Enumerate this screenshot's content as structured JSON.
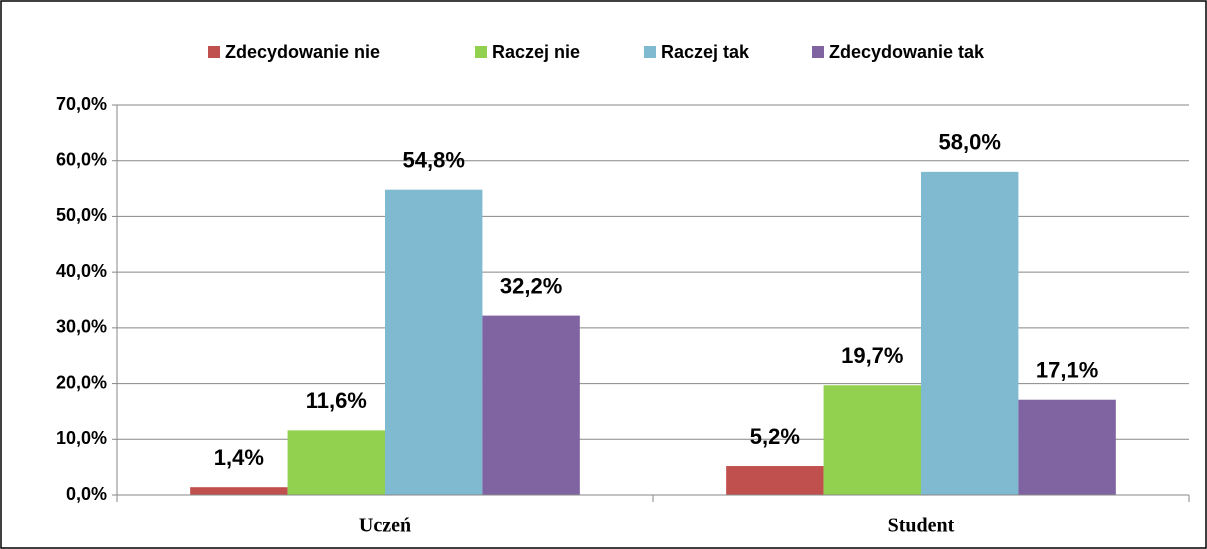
{
  "chart_data": {
    "type": "bar",
    "categories": [
      "Uczeń",
      "Student"
    ],
    "series": [
      {
        "name": "Zdecydowanie nie",
        "color": "#c0504d",
        "values": [
          1.4,
          5.2
        ],
        "value_labels": [
          "1,4%",
          "5,2%"
        ]
      },
      {
        "name": "Raczej nie",
        "color": "#92d050",
        "values": [
          11.6,
          19.7
        ],
        "value_labels": [
          "11,6%",
          "19,7%"
        ]
      },
      {
        "name": "Raczej tak",
        "color": "#7fbad0",
        "values": [
          54.8,
          58.0
        ],
        "value_labels": [
          "54,8%",
          "58,0%"
        ]
      },
      {
        "name": "Zdecydowanie tak",
        "color": "#8064a2",
        "values": [
          32.2,
          17.1
        ],
        "value_labels": [
          "32,2%",
          "17,1%"
        ]
      }
    ],
    "ylim": [
      0,
      70
    ],
    "yticks": [
      {
        "value": 0,
        "label": "0,0%"
      },
      {
        "value": 10,
        "label": "10,0%"
      },
      {
        "value": 20,
        "label": "20,0%"
      },
      {
        "value": 30,
        "label": "30,0%"
      },
      {
        "value": 40,
        "label": "40,0%"
      },
      {
        "value": 50,
        "label": "50,0%"
      },
      {
        "value": 60,
        "label": "60,0%"
      },
      {
        "value": 70,
        "label": "70,0%"
      }
    ],
    "grid": true,
    "legend": "top"
  }
}
